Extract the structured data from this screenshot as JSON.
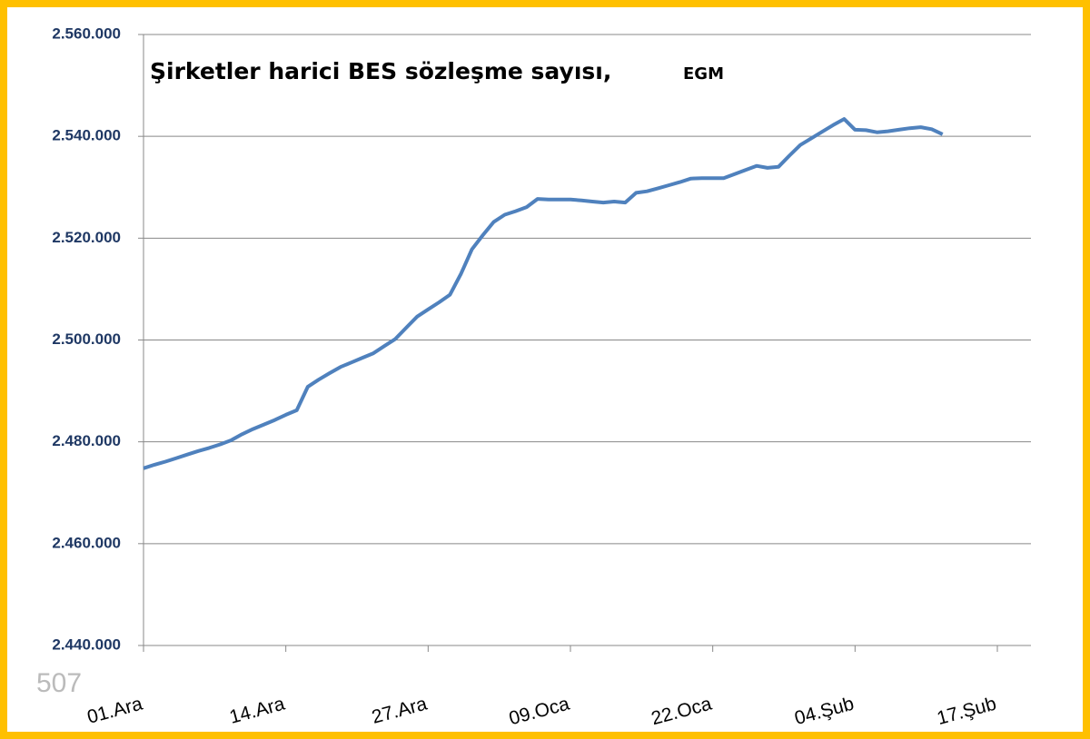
{
  "chart_data": {
    "type": "line",
    "title": "Şirketler harici BES sözleşme sayısı,",
    "source": "EGM",
    "watermark": "507",
    "categories": [
      "01.Ara",
      null,
      null,
      null,
      null,
      null,
      null,
      null,
      null,
      null,
      null,
      null,
      null,
      "14.Ara",
      null,
      null,
      null,
      null,
      null,
      null,
      null,
      null,
      null,
      null,
      null,
      null,
      "27.Ara",
      null,
      null,
      null,
      null,
      null,
      null,
      null,
      null,
      null,
      null,
      null,
      null,
      "09.Oca",
      null,
      null,
      null,
      null,
      null,
      null,
      null,
      null,
      null,
      null,
      null,
      null,
      "22.Oca",
      null,
      null,
      null,
      null,
      null,
      null,
      null,
      null,
      null,
      null,
      null,
      null,
      "04.Şub",
      null,
      null,
      null,
      null,
      null,
      null,
      null,
      null,
      null,
      null,
      null,
      null,
      "17.Şub"
    ],
    "series": [
      {
        "name": "Şirketler harici BES sözleşme sayısı",
        "color": "#4f81bd",
        "values": [
          2474800,
          2475500,
          2476100,
          2476800,
          2477500,
          2478200,
          2478800,
          2479500,
          2480300,
          2481500,
          2482500,
          2483400,
          2484300,
          2485300,
          2486200,
          2490800,
          2492200,
          2493500,
          2494700,
          2495600,
          2496500,
          2497400,
          2498800,
          2500200,
          2502400,
          2504600,
          2506000,
          2507400,
          2508900,
          2513000,
          2517800,
          2520600,
          2523200,
          2524600,
          2525300,
          2526100,
          2527700,
          2527600,
          2527600,
          2527600,
          2527400,
          2527200,
          2527000,
          2527200,
          2527000,
          2528900,
          2529200,
          2529800,
          2530400,
          2531000,
          2531700,
          2531800,
          2531800,
          2531800,
          2532600,
          2533400,
          2534200,
          2533800,
          2534000,
          2536200,
          2538300,
          2539600,
          2540900,
          2542200,
          2543400,
          2541300,
          2541200,
          2540800,
          2541000,
          2541300,
          2541600,
          2541800,
          2541400,
          2540400,
          null,
          null,
          null,
          null,
          null
        ]
      }
    ],
    "ylim": [
      2440000,
      2560000
    ],
    "yticks": [
      {
        "value": 2440000,
        "label": "2.440.000"
      },
      {
        "value": 2460000,
        "label": "2.460.000"
      },
      {
        "value": 2480000,
        "label": "2.480.000"
      },
      {
        "value": 2500000,
        "label": "2.500.000"
      },
      {
        "value": 2520000,
        "label": "2.520.000"
      },
      {
        "value": 2540000,
        "label": "2.540.000"
      },
      {
        "value": 2560000,
        "label": "2.560.000"
      }
    ],
    "grid": true
  }
}
